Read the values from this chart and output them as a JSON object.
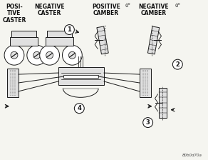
{
  "bg_color": "#f5f5f0",
  "figure_code": "80b0d70a",
  "labels": {
    "pos_caster": "POSI-\nTIVE\nCASTER",
    "neg_caster": "NEGATIVE\nCASTER",
    "pos_camber": "POSITIVE\nCAMBER",
    "neg_camber": "NEGATIVE\nCAMBER",
    "zero_1": "0°",
    "zero_2": "0°"
  },
  "circle_nums": [
    "1",
    "2",
    "3",
    "4"
  ],
  "lw": 0.7,
  "line_color": "#1a1a1a",
  "text_color": "#111111",
  "gray_fill": "#c8c8c8",
  "light_gray": "#e0e0e0"
}
